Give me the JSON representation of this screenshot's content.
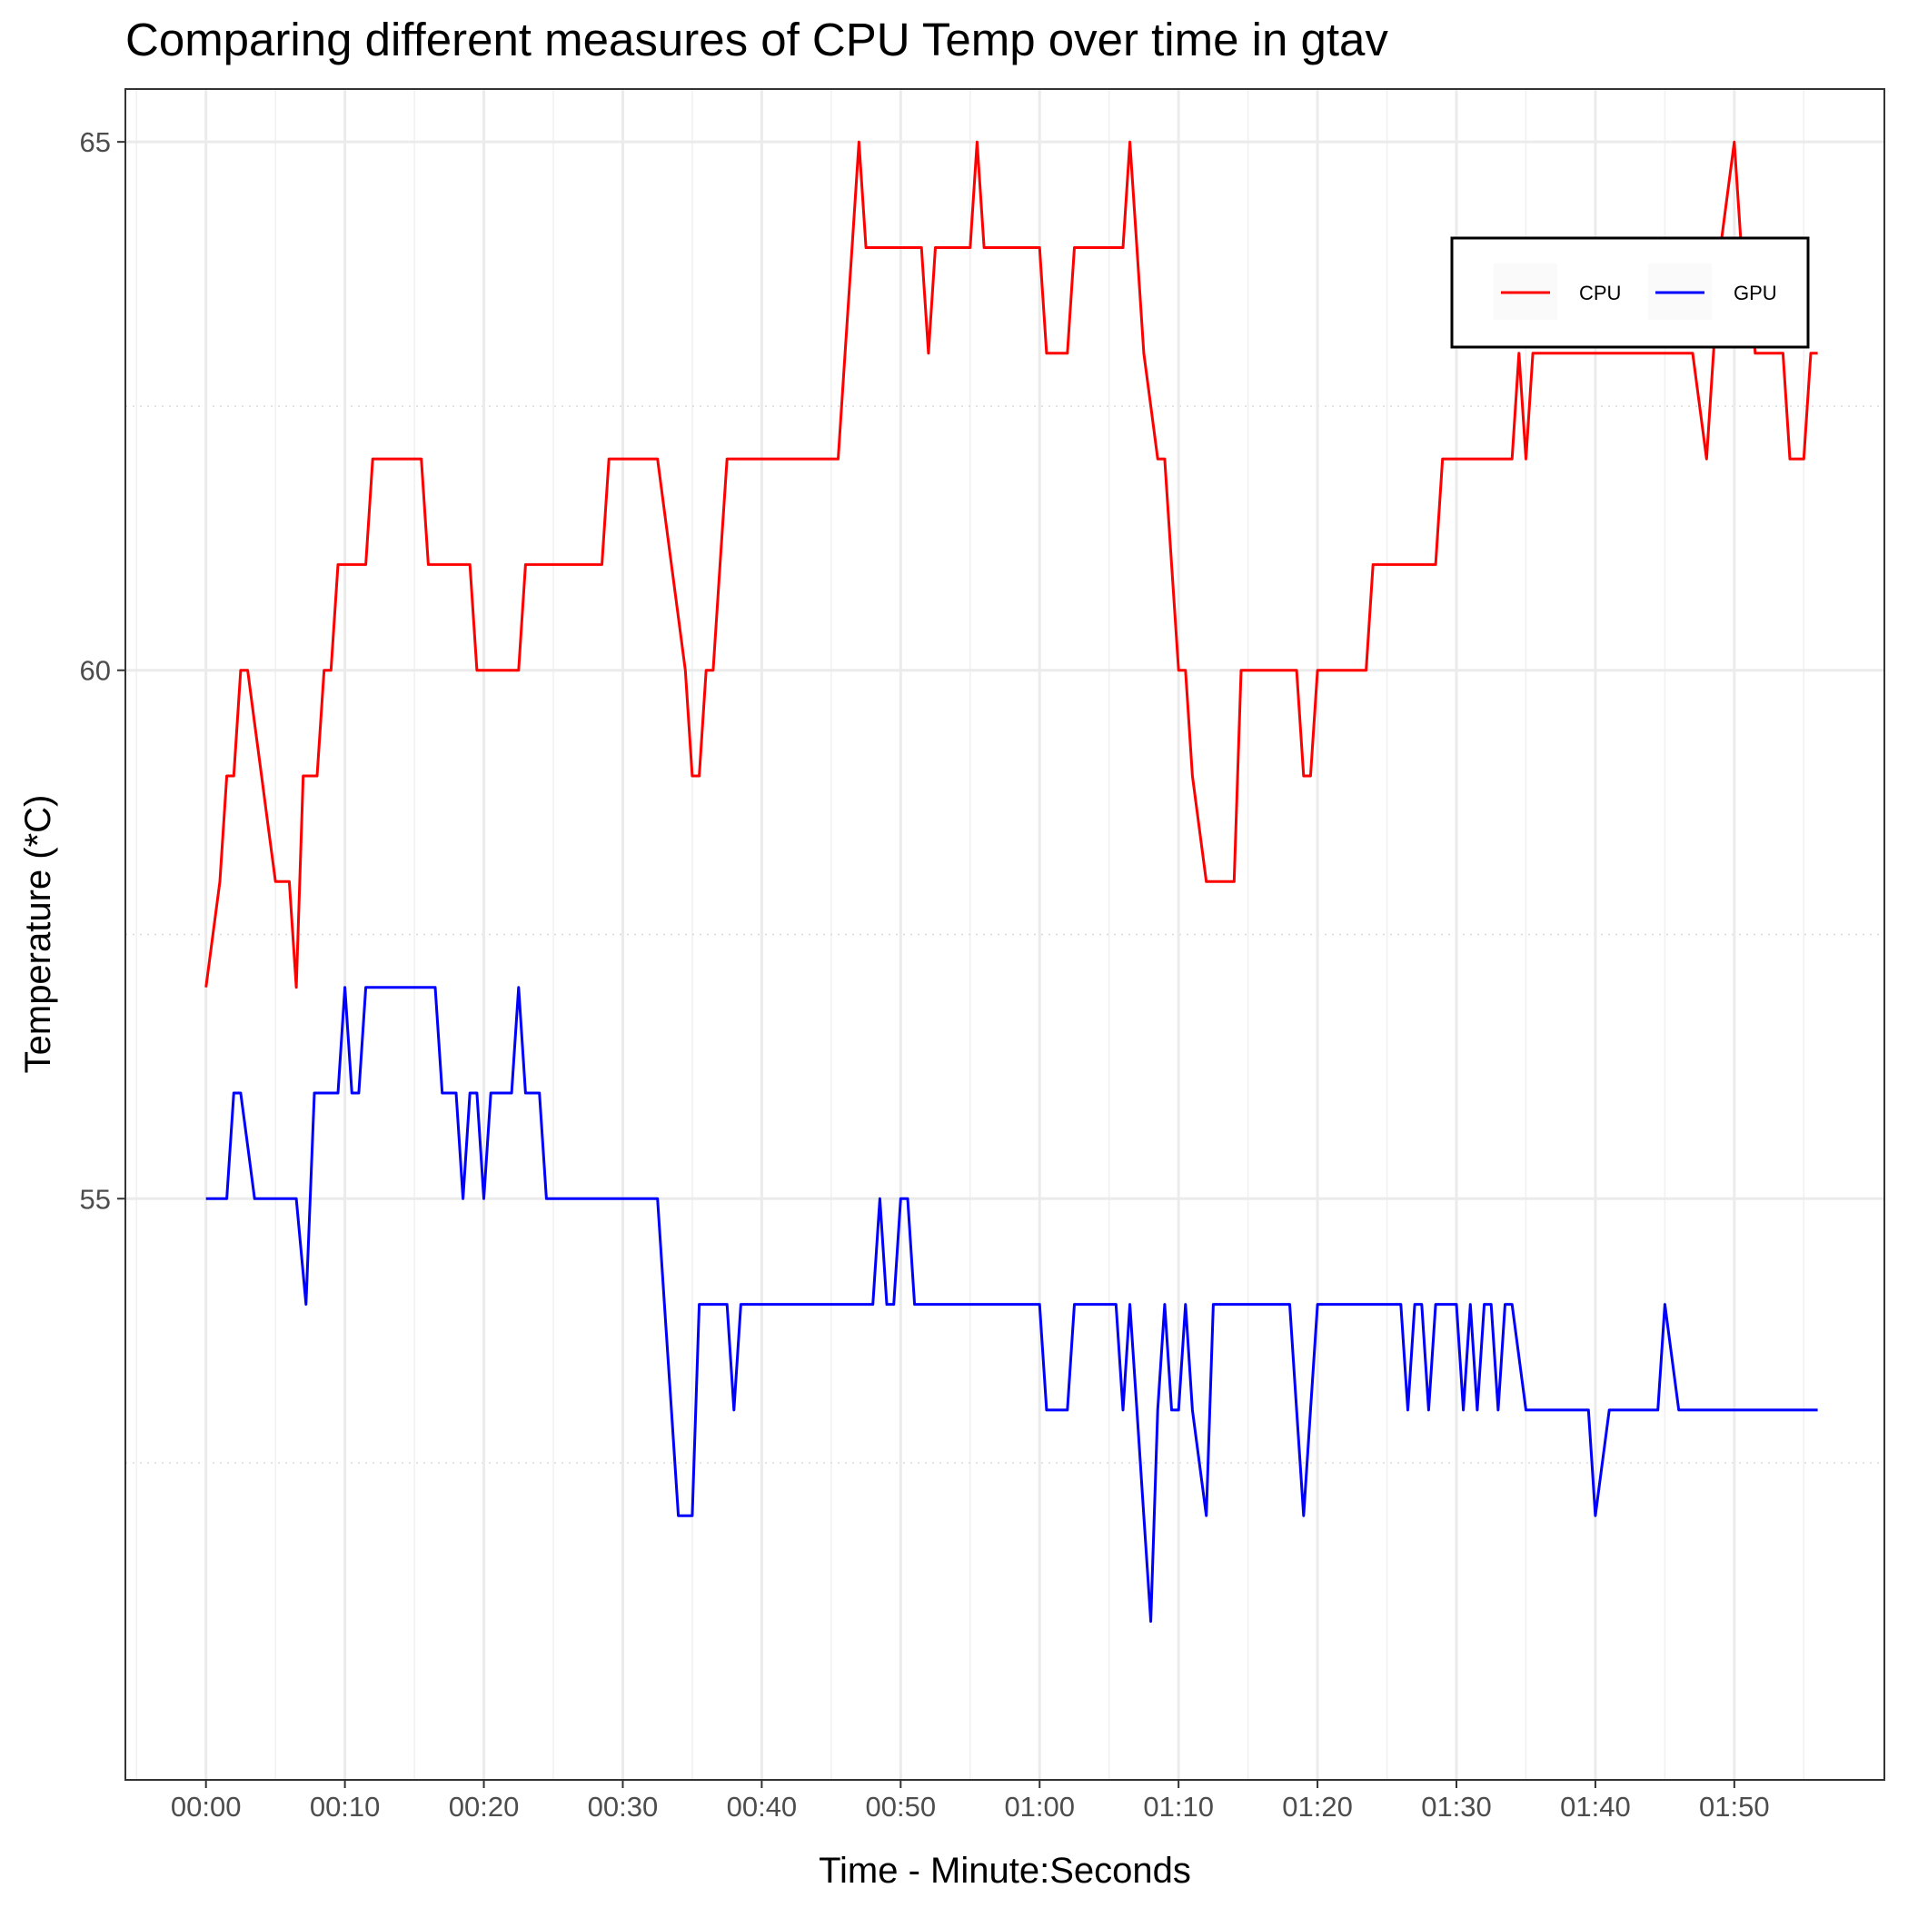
{
  "chart_data": {
    "type": "line",
    "title": "Comparing different measures of CPU Temp over time in gtav",
    "xlabel": "Time - Minute:Seconds",
    "ylabel": "Temperature (*C)",
    "xlim": [
      -5.8,
      120.8
    ],
    "ylim": [
      49.5,
      65.5
    ],
    "x_ticks": [
      0,
      10,
      20,
      30,
      40,
      50,
      60,
      70,
      80,
      90,
      100,
      110
    ],
    "x_tick_labels": [
      "00:00",
      "00:10",
      "00:20",
      "00:30",
      "00:40",
      "00:50",
      "01:00",
      "01:10",
      "01:20",
      "01:30",
      "01:40",
      "01:50"
    ],
    "y_ticks": [
      55,
      60,
      65
    ],
    "y_tick_labels": [
      "55",
      "60",
      "65"
    ],
    "grid": true,
    "legend_position": "top-right",
    "series": [
      {
        "name": "CPU",
        "color": "#ff0000",
        "points": [
          [
            0,
            57
          ],
          [
            1,
            58
          ],
          [
            1.5,
            59
          ],
          [
            2,
            59
          ],
          [
            2.5,
            60
          ],
          [
            3,
            60
          ],
          [
            3.5,
            59.5
          ],
          [
            4,
            59
          ],
          [
            4.5,
            58.5
          ],
          [
            5,
            58
          ],
          [
            5.5,
            58
          ],
          [
            6,
            58
          ],
          [
            6.5,
            57
          ],
          [
            7,
            59
          ],
          [
            7.5,
            59
          ],
          [
            8,
            59
          ],
          [
            8.5,
            60
          ],
          [
            9,
            60
          ],
          [
            9.5,
            61
          ],
          [
            10,
            61
          ],
          [
            11,
            61
          ],
          [
            11.5,
            61
          ],
          [
            12,
            62
          ],
          [
            13,
            62
          ],
          [
            14,
            62
          ],
          [
            15,
            62
          ],
          [
            15.5,
            62
          ],
          [
            16,
            61
          ],
          [
            17,
            61
          ],
          [
            18,
            61
          ],
          [
            19,
            61
          ],
          [
            19.5,
            60
          ],
          [
            20,
            60
          ],
          [
            21,
            60
          ],
          [
            22,
            60
          ],
          [
            22.5,
            60
          ],
          [
            23,
            61
          ],
          [
            24,
            61
          ],
          [
            25,
            61
          ],
          [
            26,
            61
          ],
          [
            27,
            61
          ],
          [
            28,
            61
          ],
          [
            28.5,
            61
          ],
          [
            29,
            62
          ],
          [
            30,
            62
          ],
          [
            31,
            62
          ],
          [
            32,
            62
          ],
          [
            32.5,
            62
          ],
          [
            33.5,
            61
          ],
          [
            34.5,
            60
          ],
          [
            35,
            59
          ],
          [
            35.5,
            59
          ],
          [
            36,
            60
          ],
          [
            36.5,
            60
          ],
          [
            37,
            61
          ],
          [
            37.5,
            62
          ],
          [
            38,
            62
          ],
          [
            39,
            62
          ],
          [
            40,
            62
          ],
          [
            41,
            62
          ],
          [
            42,
            62
          ],
          [
            43,
            62
          ],
          [
            44,
            62
          ],
          [
            45,
            62
          ],
          [
            45.5,
            62
          ],
          [
            46,
            63
          ],
          [
            46.5,
            64
          ],
          [
            47,
            65
          ],
          [
            47.5,
            64
          ],
          [
            48,
            64
          ],
          [
            49,
            64
          ],
          [
            50,
            64
          ],
          [
            51,
            64
          ],
          [
            51.5,
            64
          ],
          [
            52,
            63
          ],
          [
            52.5,
            64
          ],
          [
            53,
            64
          ],
          [
            54,
            64
          ],
          [
            55,
            64
          ],
          [
            55.5,
            65
          ],
          [
            56,
            64
          ],
          [
            57,
            64
          ],
          [
            58,
            64
          ],
          [
            59,
            64
          ],
          [
            59.5,
            64
          ],
          [
            60,
            64
          ],
          [
            60.5,
            63
          ],
          [
            61,
            63
          ],
          [
            62,
            63
          ],
          [
            62.5,
            64
          ],
          [
            63,
            64
          ],
          [
            64,
            64
          ],
          [
            65,
            64
          ],
          [
            66,
            64
          ],
          [
            66.5,
            65
          ],
          [
            67,
            64
          ],
          [
            67.5,
            63
          ],
          [
            68,
            62.5
          ],
          [
            68.5,
            62
          ],
          [
            69,
            62
          ],
          [
            69.5,
            61
          ],
          [
            70,
            60
          ],
          [
            70.5,
            60
          ],
          [
            71,
            59
          ],
          [
            72,
            58
          ],
          [
            72.5,
            58
          ],
          [
            73,
            58
          ],
          [
            74,
            58
          ],
          [
            74.5,
            60
          ],
          [
            75,
            60
          ],
          [
            76,
            60
          ],
          [
            77,
            60
          ],
          [
            78,
            60
          ],
          [
            78.5,
            60
          ],
          [
            79,
            59
          ],
          [
            79.5,
            59
          ],
          [
            80,
            60
          ],
          [
            81,
            60
          ],
          [
            82,
            60
          ],
          [
            83,
            60
          ],
          [
            83.5,
            60
          ],
          [
            84,
            61
          ],
          [
            85,
            61
          ],
          [
            86,
            61
          ],
          [
            87,
            61
          ],
          [
            88,
            61
          ],
          [
            88.5,
            61
          ],
          [
            89,
            62
          ],
          [
            90,
            62
          ],
          [
            91,
            62
          ],
          [
            92,
            62
          ],
          [
            93,
            62
          ],
          [
            94,
            62
          ],
          [
            94.5,
            63
          ],
          [
            95,
            62
          ],
          [
            95.5,
            63
          ],
          [
            96,
            63
          ],
          [
            97,
            63
          ],
          [
            98,
            63
          ],
          [
            99,
            63
          ],
          [
            100,
            63
          ],
          [
            101,
            63
          ],
          [
            102,
            63
          ],
          [
            103,
            63
          ],
          [
            104,
            63
          ],
          [
            105,
            63
          ],
          [
            106,
            63
          ],
          [
            107,
            63
          ],
          [
            108,
            62
          ],
          [
            108.5,
            63
          ],
          [
            109,
            64
          ],
          [
            110,
            65
          ],
          [
            110.5,
            64
          ],
          [
            111,
            64
          ],
          [
            111.5,
            63
          ],
          [
            112,
            63
          ],
          [
            113,
            63
          ],
          [
            113.5,
            63
          ],
          [
            114,
            62
          ],
          [
            115,
            62
          ],
          [
            115.5,
            63
          ],
          [
            116,
            63
          ]
        ]
      },
      {
        "name": "GPU",
        "color": "#0000ff",
        "points": [
          [
            0,
            55
          ],
          [
            1,
            55
          ],
          [
            1.5,
            55
          ],
          [
            2,
            56
          ],
          [
            2.5,
            56
          ],
          [
            3,
            55.5
          ],
          [
            3.5,
            55
          ],
          [
            4,
            55
          ],
          [
            5,
            55
          ],
          [
            6,
            55
          ],
          [
            6.5,
            55
          ],
          [
            7.2,
            54
          ],
          [
            7.8,
            56
          ],
          [
            8,
            56
          ],
          [
            9,
            56
          ],
          [
            9.5,
            56
          ],
          [
            10,
            57
          ],
          [
            10.5,
            56
          ],
          [
            11,
            56
          ],
          [
            11.5,
            57
          ],
          [
            12,
            57
          ],
          [
            13,
            57
          ],
          [
            14,
            57
          ],
          [
            15,
            57
          ],
          [
            16,
            57
          ],
          [
            16.5,
            57
          ],
          [
            17,
            56
          ],
          [
            18,
            56
          ],
          [
            18.5,
            55
          ],
          [
            19,
            56
          ],
          [
            19.5,
            56
          ],
          [
            20,
            55
          ],
          [
            20.5,
            56
          ],
          [
            21,
            56
          ],
          [
            22,
            56
          ],
          [
            22.5,
            57
          ],
          [
            23,
            56
          ],
          [
            24,
            56
          ],
          [
            24.5,
            55
          ],
          [
            25,
            55
          ],
          [
            26,
            55
          ],
          [
            27,
            55
          ],
          [
            28,
            55
          ],
          [
            29,
            55
          ],
          [
            30,
            55
          ],
          [
            31,
            55
          ],
          [
            32,
            55
          ],
          [
            32.5,
            55
          ],
          [
            33,
            54
          ],
          [
            33.5,
            53
          ],
          [
            34,
            52
          ],
          [
            34.5,
            52
          ],
          [
            35,
            52
          ],
          [
            35.5,
            54
          ],
          [
            36,
            54
          ],
          [
            37,
            54
          ],
          [
            37.5,
            54
          ],
          [
            38,
            53
          ],
          [
            38.5,
            54
          ],
          [
            39,
            54
          ],
          [
            40,
            54
          ],
          [
            41,
            54
          ],
          [
            42,
            54
          ],
          [
            43,
            54
          ],
          [
            44,
            54
          ],
          [
            45,
            54
          ],
          [
            46,
            54
          ],
          [
            47,
            54
          ],
          [
            48,
            54
          ],
          [
            48.5,
            55
          ],
          [
            49,
            54
          ],
          [
            49.5,
            54
          ],
          [
            50,
            55
          ],
          [
            50.5,
            55
          ],
          [
            51,
            54
          ],
          [
            52,
            54
          ],
          [
            53,
            54
          ],
          [
            54,
            54
          ],
          [
            55,
            54
          ],
          [
            56,
            54
          ],
          [
            57,
            54
          ],
          [
            58,
            54
          ],
          [
            59,
            54
          ],
          [
            60,
            54
          ],
          [
            60.5,
            53
          ],
          [
            61,
            53
          ],
          [
            62,
            53
          ],
          [
            62.5,
            54
          ],
          [
            63,
            54
          ],
          [
            64,
            54
          ],
          [
            65,
            54
          ],
          [
            65.5,
            54
          ],
          [
            66,
            53
          ],
          [
            66.5,
            54
          ],
          [
            67,
            53
          ],
          [
            67.5,
            52
          ],
          [
            68,
            51
          ],
          [
            68.5,
            53
          ],
          [
            69,
            54
          ],
          [
            69.5,
            53
          ],
          [
            70,
            53
          ],
          [
            70.5,
            54
          ],
          [
            71,
            53
          ],
          [
            72,
            52
          ],
          [
            72.5,
            54
          ],
          [
            73,
            54
          ],
          [
            74,
            54
          ],
          [
            75,
            54
          ],
          [
            76,
            54
          ],
          [
            77,
            54
          ],
          [
            78,
            54
          ],
          [
            78.5,
            53
          ],
          [
            79,
            52
          ],
          [
            79.5,
            53
          ],
          [
            80,
            54
          ],
          [
            81,
            54
          ],
          [
            82,
            54
          ],
          [
            83,
            54
          ],
          [
            84,
            54
          ],
          [
            85,
            54
          ],
          [
            86,
            54
          ],
          [
            86.5,
            53
          ],
          [
            87,
            54
          ],
          [
            87.5,
            54
          ],
          [
            88,
            53
          ],
          [
            88.5,
            54
          ],
          [
            89,
            54
          ],
          [
            90,
            54
          ],
          [
            90.5,
            53
          ],
          [
            91,
            54
          ],
          [
            91.5,
            53
          ],
          [
            92,
            54
          ],
          [
            92.5,
            54
          ],
          [
            93,
            53
          ],
          [
            93.5,
            54
          ],
          [
            94,
            54
          ],
          [
            95,
            53
          ],
          [
            96,
            53
          ],
          [
            97,
            53
          ],
          [
            98,
            53
          ],
          [
            99,
            53
          ],
          [
            99.5,
            53
          ],
          [
            100,
            52
          ],
          [
            101,
            53
          ],
          [
            102,
            53
          ],
          [
            103,
            53
          ],
          [
            104,
            53
          ],
          [
            104.5,
            53
          ],
          [
            105,
            54
          ],
          [
            106,
            53
          ],
          [
            107,
            53
          ],
          [
            108,
            53
          ],
          [
            109,
            53
          ],
          [
            110,
            53
          ],
          [
            111,
            53
          ],
          [
            112,
            53
          ],
          [
            113,
            53
          ],
          [
            114,
            53
          ],
          [
            115,
            53
          ],
          [
            116,
            53
          ]
        ]
      }
    ]
  }
}
